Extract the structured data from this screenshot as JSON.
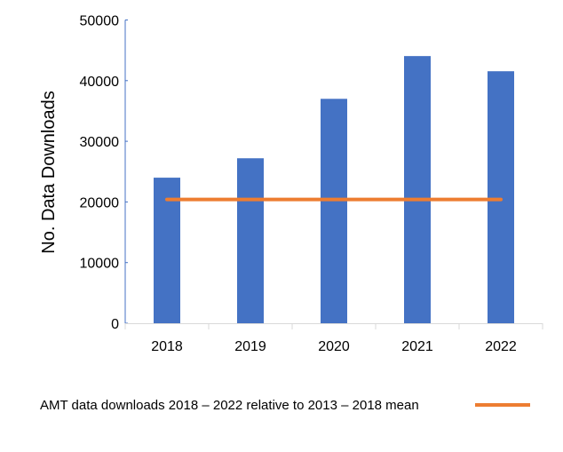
{
  "chart_data": {
    "type": "bar",
    "title": "",
    "xlabel": "",
    "ylabel": "No. Data Downloads",
    "ylim": [
      0,
      50000
    ],
    "yticks": [
      "0",
      "10000",
      "20000",
      "30000",
      "40000",
      "50000"
    ],
    "categories": [
      "2018",
      "2019",
      "2020",
      "2021",
      "2022"
    ],
    "series": [
      {
        "name": "AMT data downloads",
        "type": "bar",
        "color": "#4472C4",
        "values": [
          24000,
          27200,
          37000,
          44050,
          41550
        ]
      },
      {
        "name": "2013 – 2018 mean",
        "type": "line",
        "color": "#ED7D31",
        "values": [
          20400,
          20400,
          20400,
          20400,
          20400
        ]
      }
    ],
    "legend": {
      "text": "AMT data downloads 2018 – 2022 relative to 2013 – 2018 mean",
      "placement": "bottom"
    },
    "grid": false
  }
}
